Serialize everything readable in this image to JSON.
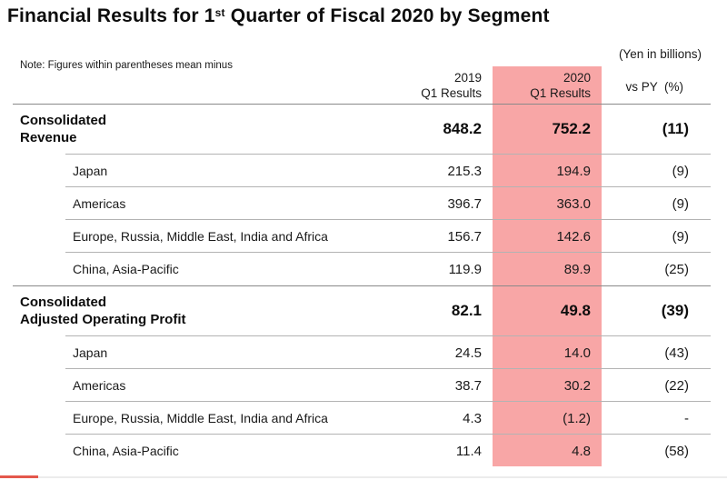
{
  "title": {
    "prefix": "Financial Results for 1",
    "sup": "st",
    "suffix": " Quarter of Fiscal 2020 by Segment"
  },
  "unit_label": "(Yen in billions)",
  "note": "Note: Figures within parentheses mean minus",
  "columns": {
    "y2019_line1": "2019",
    "y2019_line2": "Q1 Results",
    "y2020_line1": "2020",
    "y2020_line2": "Q1 Results",
    "vs_py": "vs PY  (%)"
  },
  "sections": [
    {
      "label_line1": "Consolidated",
      "label_line2": "Revenue",
      "y2019": "848.2",
      "y2020": "752.2",
      "vs": "(11)",
      "rows": [
        {
          "label": "Japan",
          "y2019": "215.3",
          "y2020": "194.9",
          "vs": "(9)"
        },
        {
          "label": "Americas",
          "y2019": "396.7",
          "y2020": "363.0",
          "vs": "(9)"
        },
        {
          "label": "Europe, Russia, Middle East, India and Africa",
          "y2019": "156.7",
          "y2020": "142.6",
          "vs": "(9)"
        },
        {
          "label": "China, Asia-Pacific",
          "y2019": "119.9",
          "y2020": "89.9",
          "vs": "(25)"
        }
      ]
    },
    {
      "label_line1": "Consolidated",
      "label_line2": "Adjusted Operating Profit",
      "y2019": "82.1",
      "y2020": "49.8",
      "vs": "(39)",
      "rows": [
        {
          "label": "Japan",
          "y2019": "24.5",
          "y2020": "14.0",
          "vs": "(43)"
        },
        {
          "label": "Americas",
          "y2019": "38.7",
          "y2020": "30.2",
          "vs": "(22)"
        },
        {
          "label": "Europe, Russia, Middle East, India and Africa",
          "y2019": "4.3",
          "y2020": "(1.2)",
          "vs": "-"
        },
        {
          "label": "China, Asia-Pacific",
          "y2019": "11.4",
          "y2020": "4.8",
          "vs": "(58)"
        }
      ]
    }
  ],
  "colors": {
    "highlight_pink": "#F8A6A6",
    "accent_red": "#E4584C",
    "line_dark": "#8A8A8A",
    "line_light": "#B3B3B3",
    "bottom_gray": "#ECECEC"
  }
}
